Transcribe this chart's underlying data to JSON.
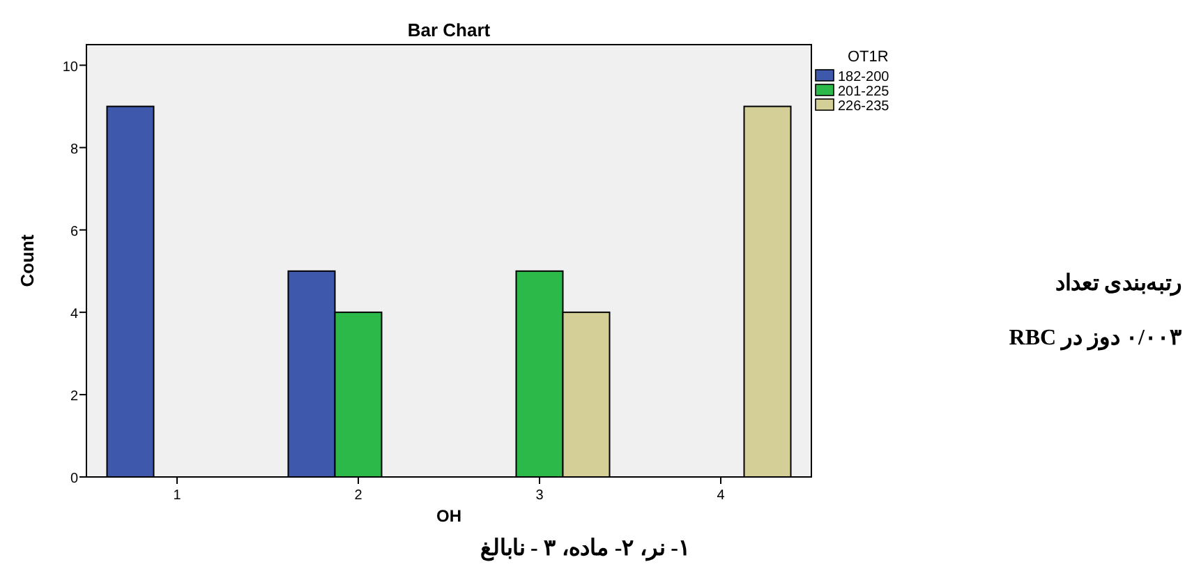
{
  "chart_data": {
    "type": "bar",
    "title": "Bar Chart",
    "xlabel": "OH",
    "ylabel": "Count",
    "legend_title": "OT1R",
    "categories": [
      "1",
      "2",
      "3",
      "4"
    ],
    "series": [
      {
        "name": "182-200",
        "color": "#3e58ac",
        "values": [
          9,
          5,
          0,
          0
        ]
      },
      {
        "name": "201-225",
        "color": "#2db84a",
        "values": [
          0,
          4,
          5,
          0
        ]
      },
      {
        "name": "226-235",
        "color": "#d4cf96",
        "values": [
          0,
          0,
          4,
          9
        ]
      }
    ],
    "ylim": [
      0,
      10.5
    ],
    "yticks": [
      0,
      2,
      4,
      6,
      8,
      10
    ],
    "legend": "right",
    "annotations": [
      "رتبه‌بندی تعداد",
      "۰/۰۰۳ دوز در RBC",
      "۱- نر، ۲- ماده، ۳ - نابالغ"
    ]
  }
}
